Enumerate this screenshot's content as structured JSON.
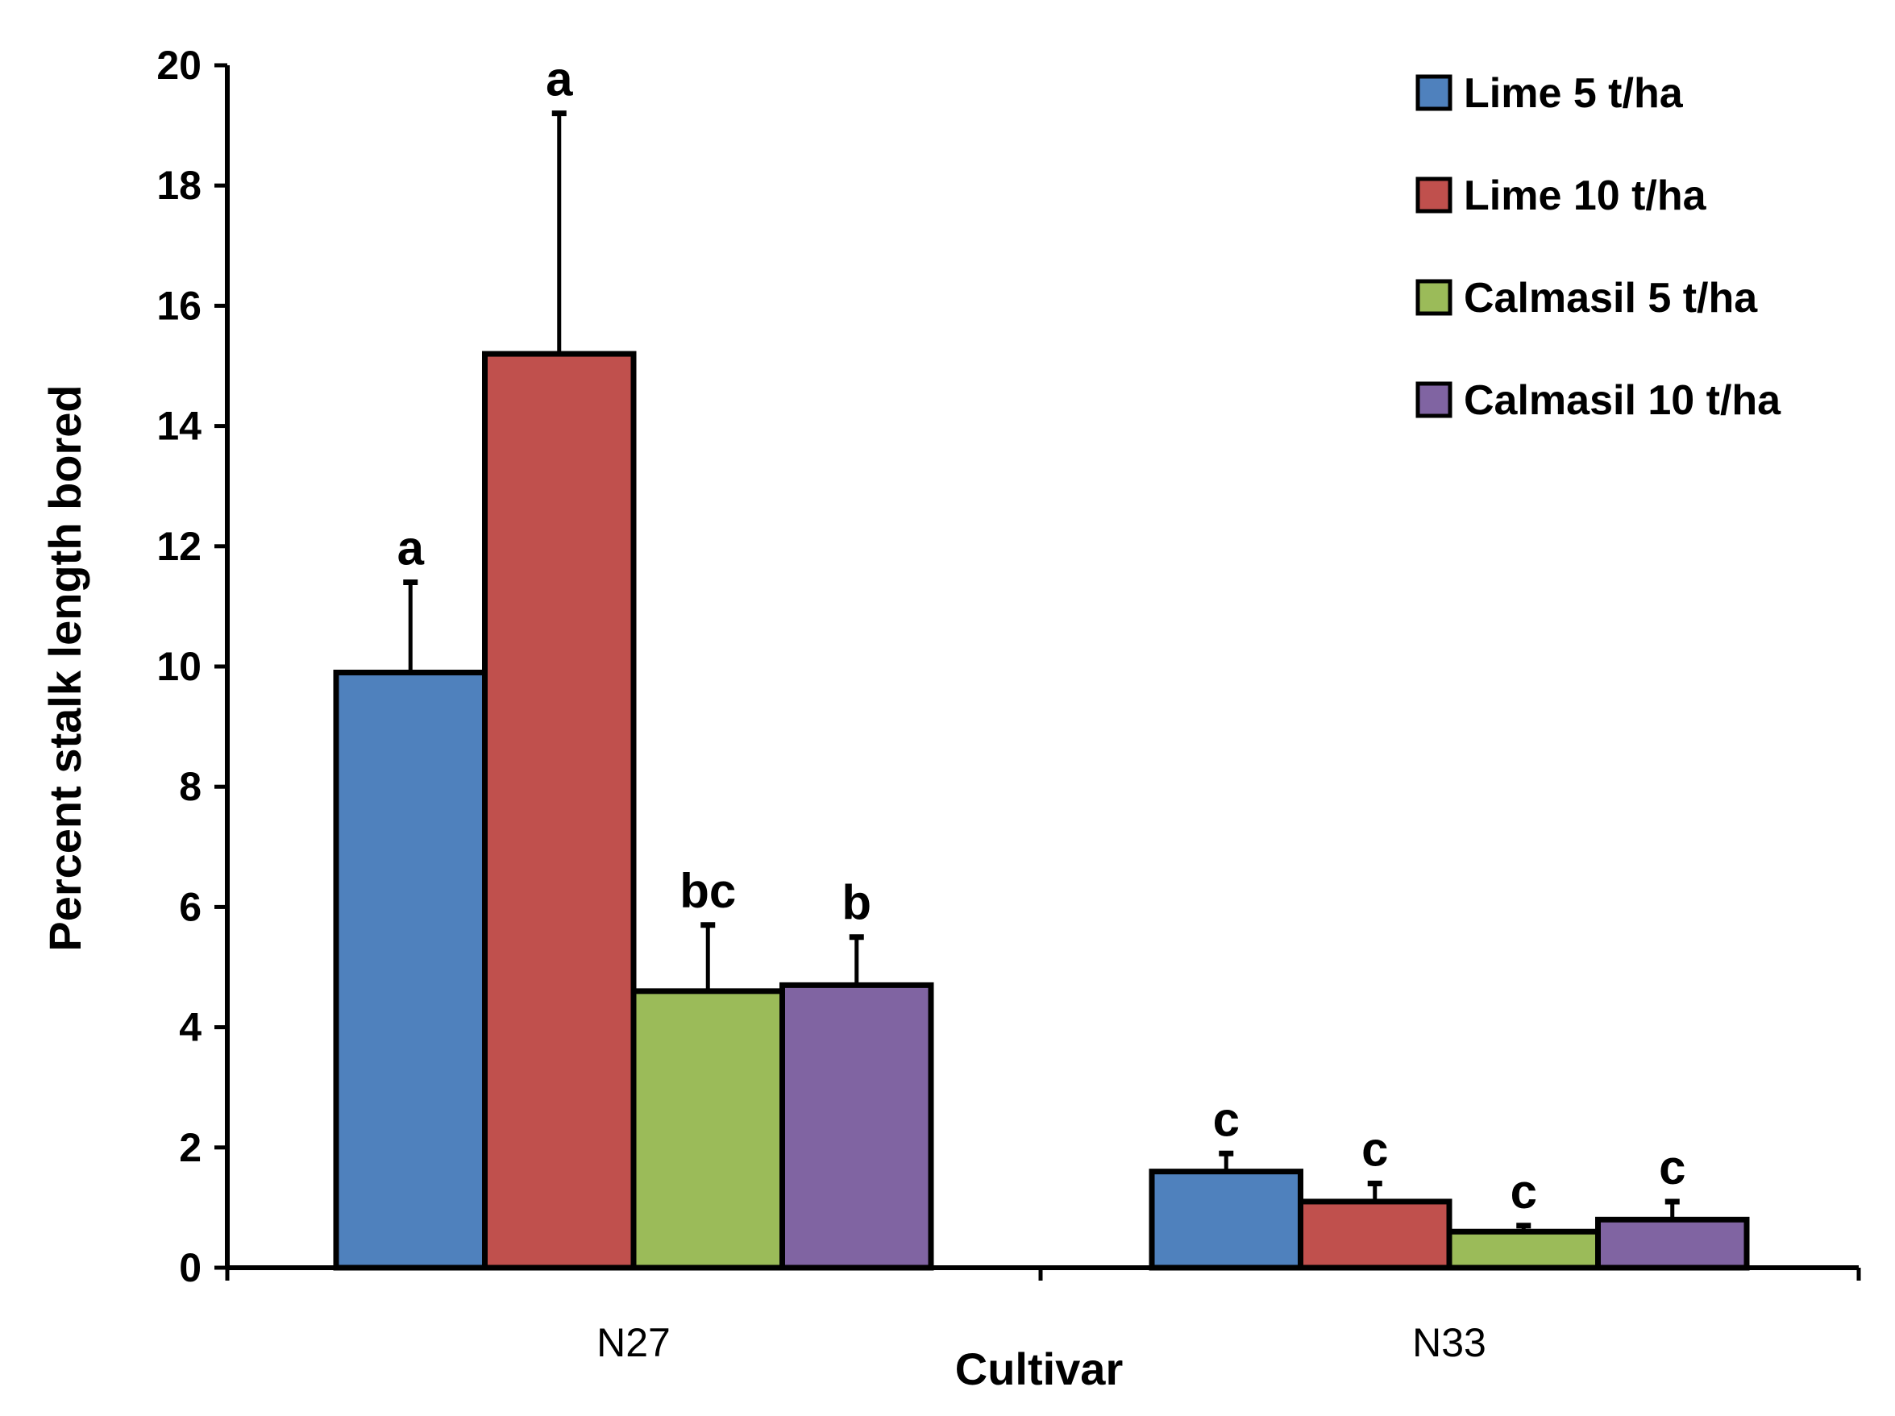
{
  "chart_data": {
    "type": "bar",
    "title": "",
    "xlabel": "Cultivar",
    "ylabel": "Percent stalk length bored",
    "ylim": [
      0,
      20
    ],
    "yticks": [
      0,
      2,
      4,
      6,
      8,
      10,
      12,
      14,
      16,
      18,
      20
    ],
    "categories": [
      "N27",
      "N33"
    ],
    "legend_position": "top-right",
    "series": [
      {
        "name": "Lime 5 t/ha",
        "color": "#4f81bd",
        "values": [
          9.9,
          1.6
        ],
        "error_upper": [
          11.4,
          1.9
        ],
        "letters": [
          "a",
          "c"
        ]
      },
      {
        "name": "Lime 10 t/ha",
        "color": "#c0504d",
        "values": [
          15.2,
          1.1
        ],
        "error_upper": [
          19.2,
          1.4
        ],
        "letters": [
          "a",
          "c"
        ]
      },
      {
        "name": "Calmasil 5 t/ha",
        "color": "#9bbb59",
        "values": [
          4.6,
          0.6
        ],
        "error_upper": [
          5.7,
          0.7
        ],
        "letters": [
          "bc",
          "c"
        ]
      },
      {
        "name": "Calmasil 10 t/ha",
        "color": "#8064a2",
        "values": [
          4.7,
          0.8
        ],
        "error_upper": [
          5.5,
          1.1
        ],
        "letters": [
          "b",
          "c"
        ]
      }
    ]
  }
}
